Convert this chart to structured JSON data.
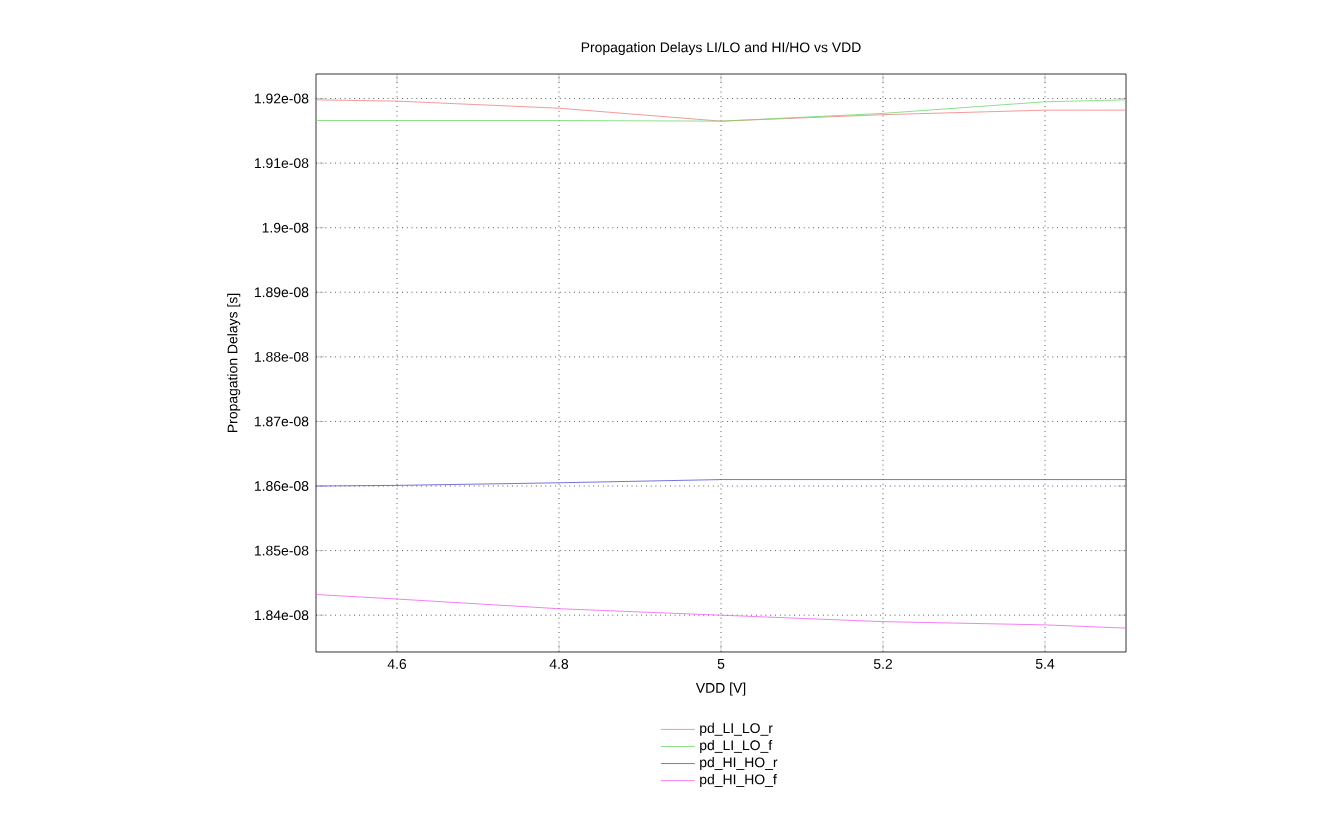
{
  "chart_data": {
    "type": "line",
    "title": "Propagation Delays LI/LO and HI/HO vs VDD",
    "xlabel": "VDD [V]",
    "ylabel": "Propagation Delays [s]",
    "x": [
      4.5,
      4.6,
      4.8,
      5.0,
      5.2,
      5.4,
      5.5
    ],
    "series": [
      {
        "name": "pd_LI_LO_r",
        "color": "#f08080",
        "values": [
          1.9198e-08,
          1.9196e-08,
          1.9185e-08,
          1.9165e-08,
          1.9175e-08,
          1.9182e-08,
          1.9182e-08
        ]
      },
      {
        "name": "pd_LI_LO_f",
        "color": "#70d870",
        "values": [
          1.9166e-08,
          1.9166e-08,
          1.9166e-08,
          1.9165e-08,
          1.9177e-08,
          1.9195e-08,
          1.9198e-08
        ]
      },
      {
        "name": "pd_HI_HO_r",
        "color": "#5050d0",
        "values": [
          1.86e-08,
          1.8601e-08,
          1.8605e-08,
          1.861e-08,
          1.861e-08,
          1.861e-08,
          1.861e-08
        ]
      },
      {
        "name": "pd_HI_HO_f",
        "color": "#f060f0",
        "values": [
          1.8432e-08,
          1.8425e-08,
          1.841e-08,
          1.84e-08,
          1.839e-08,
          1.8385e-08,
          1.838e-08
        ]
      }
    ],
    "xlim": [
      4.5,
      5.5
    ],
    "xticks": [
      4.6,
      4.8,
      5,
      5.2,
      5.4
    ],
    "ylim": [
      1.8343e-08,
      1.9238e-08
    ],
    "yticks": [
      {
        "value": 1.84e-08,
        "label": "1.84e-08"
      },
      {
        "value": 1.85e-08,
        "label": "1.85e-08"
      },
      {
        "value": 1.86e-08,
        "label": "1.86e-08"
      },
      {
        "value": 1.87e-08,
        "label": "1.87e-08"
      },
      {
        "value": 1.88e-08,
        "label": "1.88e-08"
      },
      {
        "value": 1.89e-08,
        "label": "1.89e-08"
      },
      {
        "value": 1.9e-08,
        "label": "1.9e-08"
      },
      {
        "value": 1.91e-08,
        "label": "1.91e-08"
      },
      {
        "value": 1.92e-08,
        "label": "1.92e-08"
      }
    ],
    "grid": true,
    "legend": "bottom",
    "marker": "none",
    "line_style": "solid"
  }
}
